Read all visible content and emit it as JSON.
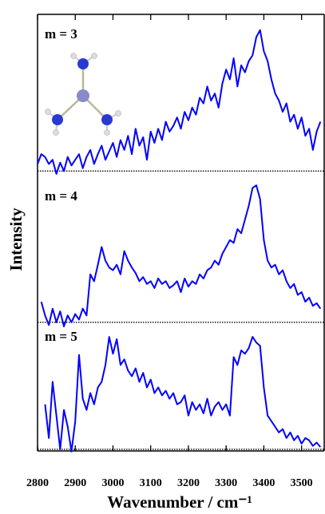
{
  "chart_data": [
    {
      "type": "line",
      "annotation": "m = 3",
      "xlim": [
        2800,
        3560
      ],
      "ylim": [
        -0.1,
        1.1
      ],
      "reference_line": 0,
      "x": [
        2800,
        2810,
        2820,
        2830,
        2840,
        2850,
        2860,
        2870,
        2880,
        2890,
        2900,
        2910,
        2920,
        2930,
        2940,
        2950,
        2960,
        2970,
        2980,
        2990,
        3000,
        3010,
        3020,
        3030,
        3040,
        3050,
        3060,
        3070,
        3080,
        3090,
        3100,
        3110,
        3120,
        3130,
        3140,
        3150,
        3160,
        3170,
        3180,
        3190,
        3200,
        3210,
        3220,
        3230,
        3240,
        3250,
        3260,
        3270,
        3280,
        3290,
        3300,
        3310,
        3320,
        3330,
        3340,
        3350,
        3360,
        3370,
        3380,
        3390,
        3400,
        3410,
        3420,
        3430,
        3440,
        3450,
        3460,
        3470,
        3480,
        3490,
        3500,
        3510,
        3520,
        3530,
        3540,
        3550
      ],
      "series": [
        {
          "color": "#0000ff",
          "values": [
            0.05,
            0.12,
            0.1,
            0.05,
            0.08,
            -0.02,
            0.06,
            0.0,
            0.1,
            0.04,
            0.08,
            0.12,
            0.02,
            0.1,
            0.15,
            0.05,
            0.12,
            0.18,
            0.08,
            0.14,
            0.2,
            0.1,
            0.22,
            0.15,
            0.25,
            0.12,
            0.3,
            0.18,
            0.24,
            0.08,
            0.28,
            0.2,
            0.3,
            0.22,
            0.35,
            0.28,
            0.32,
            0.38,
            0.3,
            0.42,
            0.36,
            0.45,
            0.4,
            0.52,
            0.48,
            0.6,
            0.5,
            0.55,
            0.45,
            0.62,
            0.72,
            0.65,
            0.8,
            0.6,
            0.75,
            0.7,
            0.78,
            0.82,
            0.95,
            1.0,
            0.85,
            0.78,
            0.65,
            0.55,
            0.5,
            0.42,
            0.48,
            0.35,
            0.4,
            0.3,
            0.38,
            0.25,
            0.3,
            0.15,
            0.28,
            0.35
          ]
        }
      ]
    },
    {
      "type": "line",
      "annotation": "m = 4",
      "ylabel": "Intensity",
      "xlim": [
        2800,
        3560
      ],
      "ylim": [
        -0.1,
        1.1
      ],
      "reference_line": 0,
      "x": [
        2810,
        2820,
        2830,
        2840,
        2850,
        2860,
        2870,
        2880,
        2890,
        2900,
        2910,
        2920,
        2930,
        2940,
        2950,
        2960,
        2970,
        2980,
        2990,
        3000,
        3010,
        3020,
        3030,
        3040,
        3050,
        3060,
        3070,
        3080,
        3090,
        3100,
        3110,
        3120,
        3130,
        3140,
        3150,
        3160,
        3170,
        3180,
        3190,
        3200,
        3210,
        3220,
        3230,
        3240,
        3250,
        3260,
        3270,
        3280,
        3290,
        3300,
        3310,
        3320,
        3330,
        3340,
        3350,
        3360,
        3370,
        3380,
        3390,
        3400,
        3410,
        3420,
        3430,
        3440,
        3450,
        3460,
        3470,
        3480,
        3490,
        3500,
        3510,
        3520,
        3530,
        3540,
        3550
      ],
      "series": [
        {
          "color": "#0000ff",
          "values": [
            0.15,
            0.05,
            -0.02,
            0.1,
            0.0,
            0.08,
            -0.03,
            0.05,
            0.0,
            0.06,
            0.02,
            0.1,
            0.05,
            0.35,
            0.3,
            0.42,
            0.55,
            0.45,
            0.4,
            0.38,
            0.42,
            0.35,
            0.52,
            0.45,
            0.4,
            0.36,
            0.3,
            0.33,
            0.28,
            0.3,
            0.25,
            0.32,
            0.28,
            0.3,
            0.25,
            0.27,
            0.3,
            0.22,
            0.32,
            0.26,
            0.3,
            0.28,
            0.35,
            0.32,
            0.38,
            0.4,
            0.45,
            0.42,
            0.5,
            0.55,
            0.6,
            0.58,
            0.68,
            0.65,
            0.75,
            0.85,
            0.98,
            1.0,
            0.9,
            0.6,
            0.45,
            0.4,
            0.42,
            0.35,
            0.38,
            0.3,
            0.25,
            0.28,
            0.2,
            0.22,
            0.15,
            0.18,
            0.12,
            0.14,
            0.1
          ]
        }
      ]
    },
    {
      "type": "line",
      "annotation": "m = 5",
      "xlabel": "Wavenumber / cm⁻¹",
      "xlim": [
        2800,
        3560
      ],
      "ylim": [
        -0.1,
        1.1
      ],
      "reference_line": 0,
      "xticks": [
        2800,
        2900,
        3000,
        3100,
        3200,
        3300,
        3400,
        3500
      ],
      "x": [
        2820,
        2830,
        2840,
        2850,
        2860,
        2870,
        2880,
        2890,
        2900,
        2910,
        2920,
        2930,
        2940,
        2950,
        2960,
        2970,
        2980,
        2990,
        3000,
        3010,
        3020,
        3030,
        3040,
        3050,
        3060,
        3070,
        3080,
        3090,
        3100,
        3110,
        3120,
        3130,
        3140,
        3150,
        3160,
        3170,
        3180,
        3190,
        3200,
        3210,
        3220,
        3230,
        3240,
        3250,
        3260,
        3270,
        3280,
        3290,
        3300,
        3310,
        3320,
        3330,
        3340,
        3350,
        3360,
        3370,
        3380,
        3390,
        3400,
        3410,
        3420,
        3430,
        3440,
        3450,
        3460,
        3470,
        3480,
        3490,
        3500,
        3510,
        3520,
        3530,
        3540,
        3550
      ],
      "series": [
        {
          "color": "#0000ff",
          "values": [
            0.4,
            0.1,
            0.6,
            0.3,
            0.0,
            0.35,
            0.2,
            -0.02,
            0.25,
            0.84,
            0.45,
            0.35,
            0.5,
            0.4,
            0.55,
            0.6,
            0.75,
            1.0,
            0.85,
            0.98,
            0.75,
            0.8,
            0.7,
            0.65,
            0.72,
            0.6,
            0.68,
            0.55,
            0.62,
            0.5,
            0.55,
            0.48,
            0.52,
            0.45,
            0.5,
            0.4,
            0.42,
            0.48,
            0.3,
            0.42,
            0.35,
            0.4,
            0.32,
            0.45,
            0.3,
            0.38,
            0.42,
            0.35,
            0.4,
            0.3,
            0.82,
            0.75,
            0.88,
            0.85,
            0.9,
            1.0,
            0.95,
            0.92,
            0.55,
            0.3,
            0.25,
            0.2,
            0.15,
            0.18,
            0.1,
            0.15,
            0.08,
            0.12,
            0.05,
            0.1,
            0.08,
            0.03,
            0.06,
            0.02
          ]
        }
      ]
    }
  ]
}
